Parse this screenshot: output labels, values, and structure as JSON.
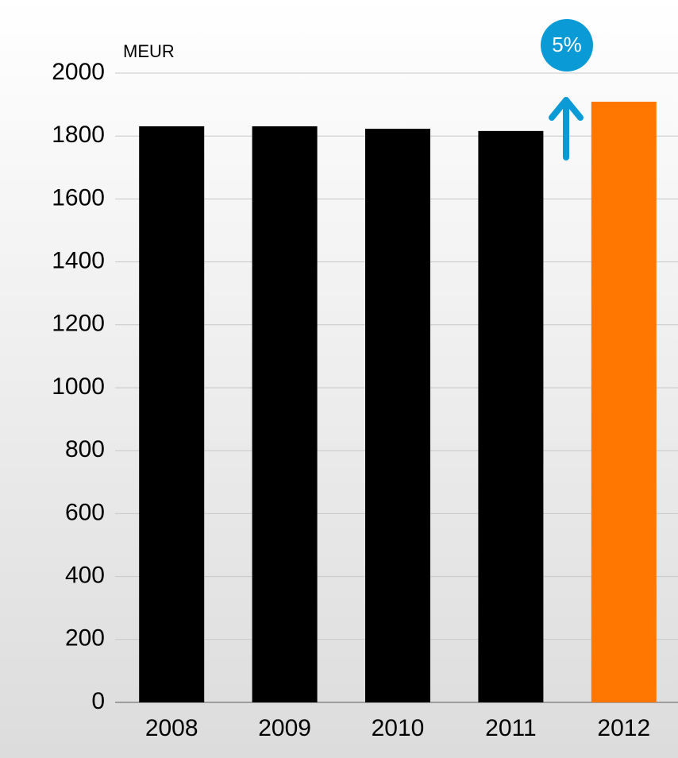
{
  "chart_data": {
    "type": "bar",
    "unit_label": "MEUR",
    "annotation": "5%",
    "categories": [
      "2008",
      "2009",
      "2010",
      "2011",
      "2012"
    ],
    "values": [
      1831,
      1831,
      1823,
      1816,
      1909
    ],
    "colors": [
      "#000000",
      "#000000",
      "#000000",
      "#000000",
      "#ff7700"
    ],
    "annotation_color": "#0a9bd6",
    "ylim": [
      0,
      2000
    ],
    "yticks": [
      0,
      200,
      400,
      600,
      800,
      1000,
      1200,
      1400,
      1600,
      1800,
      2000
    ],
    "grid": true
  }
}
